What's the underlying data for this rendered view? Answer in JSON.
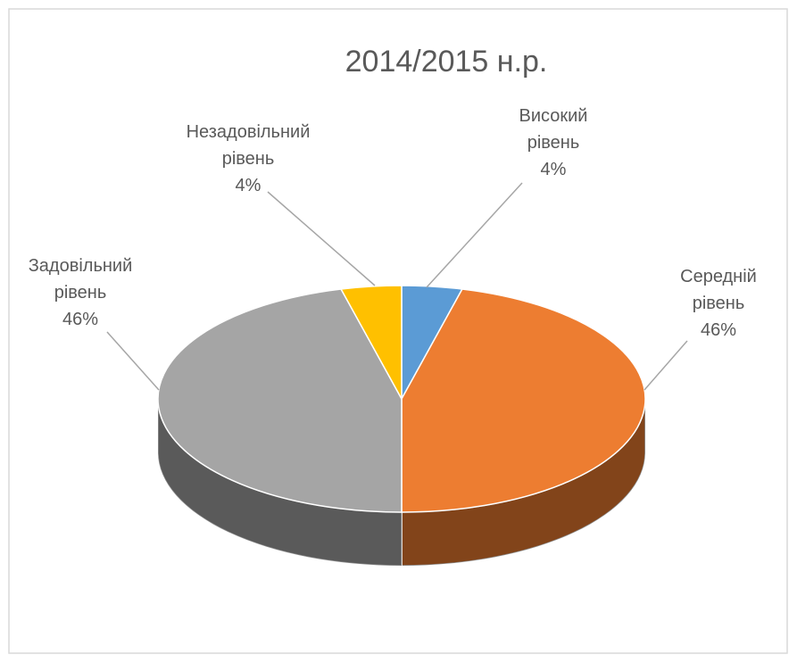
{
  "chart_data": {
    "type": "pie",
    "title": "2014/2015 н.р.",
    "categories": [
      "Високий рівень",
      "Середній рівень",
      "Задовільний рівень",
      "Незадовільний рівень"
    ],
    "values": [
      4,
      46,
      46,
      4
    ],
    "value_labels": [
      "4%",
      "46%",
      "46%",
      "4%"
    ],
    "colors": [
      "#5b9bd5",
      "#ed7d31",
      "#a5a5a5",
      "#ffc000"
    ]
  }
}
